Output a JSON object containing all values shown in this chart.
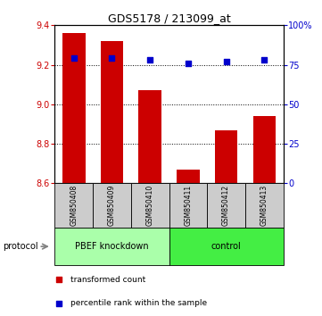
{
  "title": "GDS5178 / 213099_at",
  "samples": [
    "GSM850408",
    "GSM850409",
    "GSM850410",
    "GSM850411",
    "GSM850412",
    "GSM850413"
  ],
  "bar_values": [
    9.36,
    9.32,
    9.07,
    8.67,
    8.87,
    8.94
  ],
  "bar_baseline": 8.6,
  "percentile_values": [
    79,
    79,
    78,
    76,
    77,
    78
  ],
  "bar_color": "#cc0000",
  "percentile_color": "#0000cc",
  "ylim_left": [
    8.6,
    9.4
  ],
  "ylim_right": [
    0,
    100
  ],
  "yticks_left": [
    8.6,
    8.8,
    9.0,
    9.2,
    9.4
  ],
  "yticks_right": [
    0,
    25,
    50,
    75,
    100
  ],
  "groups": [
    {
      "label": "PBEF knockdown",
      "start": 0,
      "end": 3,
      "color": "#aaffaa"
    },
    {
      "label": "control",
      "start": 3,
      "end": 6,
      "color": "#44ee44"
    }
  ],
  "protocol_label": "protocol",
  "legend_items": [
    {
      "label": "transformed count",
      "color": "#cc0000"
    },
    {
      "label": "percentile rank within the sample",
      "color": "#0000cc"
    }
  ],
  "background_color": "#ffffff",
  "sample_bg_color": "#cccccc"
}
